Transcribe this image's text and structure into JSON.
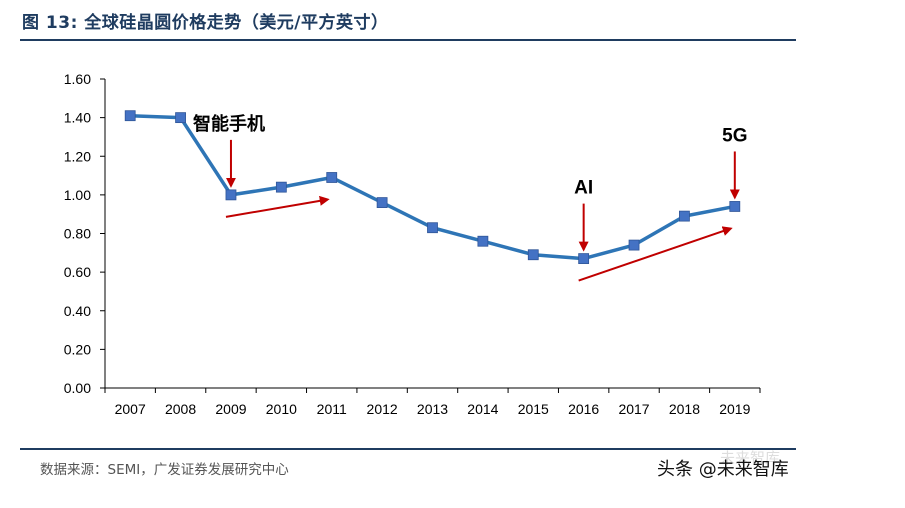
{
  "header": {
    "title": "图 13: 全球硅晶圆价格走势（美元/平方英寸）"
  },
  "footer": {
    "source": "数据来源：SEMI，广发证券发展研究中心",
    "watermark": "头条 @未来智库",
    "watermark_faint": "未来智库"
  },
  "colors": {
    "title": "#1f3c60",
    "line": "#2e75b6",
    "marker": "#4472c4",
    "arrow": "#c00000"
  },
  "chart_data": {
    "type": "line",
    "title": "",
    "xlabel": "",
    "ylabel": "",
    "categories": [
      "2007",
      "2008",
      "2009",
      "2010",
      "2011",
      "2012",
      "2013",
      "2014",
      "2015",
      "2016",
      "2017",
      "2018",
      "2019"
    ],
    "series": [
      {
        "values": [
          1.41,
          1.4,
          1.0,
          1.04,
          1.09,
          0.96,
          0.83,
          0.76,
          0.69,
          0.67,
          0.74,
          0.89,
          0.94
        ]
      }
    ],
    "ylim": [
      0,
      1.6
    ],
    "yticks": [
      "0.00",
      "0.20",
      "0.40",
      "0.60",
      "0.80",
      "1.00",
      "1.20",
      "1.40",
      "1.60"
    ],
    "grid": false,
    "annotations": [
      {
        "text": "智能手机",
        "category": "2009",
        "style": "cn"
      },
      {
        "text": "AI",
        "category": "2016",
        "style": "en"
      },
      {
        "text": "5G",
        "category": "2019",
        "style": "en"
      }
    ],
    "trend_arrows": [
      {
        "from": "2009",
        "to": "2011"
      },
      {
        "from": "2016",
        "to": "2019"
      }
    ]
  }
}
